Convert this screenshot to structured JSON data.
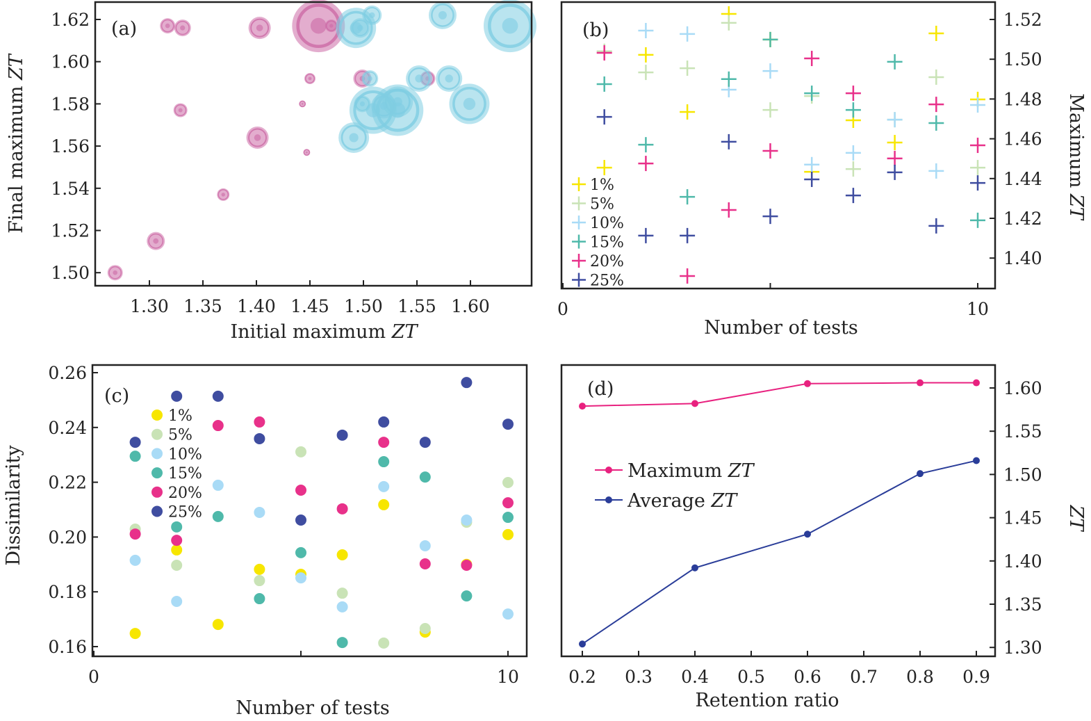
{
  "colors": {
    "pink_bubble": "#cc6aa6",
    "cyan_bubble": "#7fcde2",
    "p1": "#f7e600",
    "p5": "#c9e3b6",
    "p10": "#a9dbf6",
    "p15": "#4fb9aa",
    "p20": "#e8318a",
    "p25": "#3f4da0",
    "max_line": "#e8217f",
    "avg_line": "#2a3d99"
  },
  "chart_data": [
    {
      "type": "scatter",
      "panel_label": "(a)",
      "xlabel": "Initial maximum ",
      "xlabel_italic": "ZT",
      "ylabel": "Final maximum ",
      "ylabel_italic": "ZT",
      "xlim": [
        1.25,
        1.66
      ],
      "ylim": [
        1.492,
        1.628
      ],
      "xticks": [
        "1.30",
        "1.35",
        "1.40",
        "1.45",
        "1.50",
        "1.55",
        "1.60"
      ],
      "yticks": [
        "1.50",
        "1.52",
        "1.54",
        "1.56",
        "1.58",
        "1.60",
        "1.62"
      ],
      "series": [
        {
          "color": "pink",
          "points": [
            [
              1.268,
              1.5,
              11
            ],
            [
              1.306,
              1.515,
              13
            ],
            [
              1.317,
              1.617,
              11
            ],
            [
              1.331,
              1.616,
              12
            ],
            [
              1.329,
              1.577,
              10
            ],
            [
              1.369,
              1.537,
              9
            ],
            [
              1.401,
              1.564,
              16
            ],
            [
              1.403,
              1.616,
              16
            ],
            [
              1.443,
              1.58,
              5
            ],
            [
              1.447,
              1.557,
              5
            ],
            [
              1.45,
              1.592,
              8
            ],
            [
              1.458,
              1.617,
              38
            ],
            [
              1.47,
              1.617,
              9
            ],
            [
              1.499,
              1.592,
              13
            ],
            [
              1.56,
              1.592,
              11
            ]
          ]
        },
        {
          "color": "cyan",
          "points": [
            [
              1.493,
              1.616,
              29
            ],
            [
              1.497,
              1.616,
              14
            ],
            [
              1.508,
              1.622,
              14
            ],
            [
              1.574,
              1.622,
              20
            ],
            [
              1.637,
              1.617,
              38
            ],
            [
              1.506,
              1.592,
              12
            ],
            [
              1.552,
              1.592,
              19
            ],
            [
              1.58,
              1.592,
              19
            ],
            [
              1.499,
              1.58,
              12
            ],
            [
              1.509,
              1.577,
              34
            ],
            [
              1.532,
              1.577,
              37
            ],
            [
              1.532,
              1.581,
              22
            ],
            [
              1.599,
              1.58,
              29
            ],
            [
              1.491,
              1.564,
              22
            ],
            [
              1.519,
              1.579,
              18
            ]
          ]
        }
      ]
    },
    {
      "type": "scatter",
      "panel_label": "(b)",
      "xlabel": "Number of tests",
      "ylabel": "Maximum ",
      "ylabel_italic": "ZT",
      "xlim": [
        0,
        10.4
      ],
      "ylim": [
        1.385,
        1.528
      ],
      "xticks": [
        "0",
        "10"
      ],
      "yticks": [
        "1.40",
        "1.42",
        "1.44",
        "1.46",
        "1.48",
        "1.50",
        "1.52"
      ],
      "x": [
        1,
        2,
        3,
        4,
        5,
        6,
        7,
        8,
        9,
        10
      ],
      "series": [
        {
          "name": "1%",
          "color": "p1",
          "values": [
            1.4455,
            1.5022,
            1.4735,
            1.5228,
            1.5099,
            1.4434,
            1.4693,
            1.4581,
            1.513,
            1.4798
          ]
        },
        {
          "name": "5%",
          "color": "p5",
          "values": [
            1.504,
            1.4934,
            1.4955,
            1.5183,
            1.4745,
            1.4815,
            1.4448,
            1.4696,
            1.491,
            1.4455
          ]
        },
        {
          "name": "10%",
          "color": "p10",
          "values": [
            null,
            1.5144,
            1.5127,
            1.4847,
            1.4941,
            1.447,
            1.4529,
            1.4696,
            1.4438,
            1.477
          ]
        },
        {
          "name": "15%",
          "color": "p15",
          "values": [
            1.4875,
            1.457,
            1.4308,
            1.49,
            1.5099,
            1.4829,
            1.4745,
            1.4987,
            1.4679,
            1.419
          ]
        },
        {
          "name": "20%",
          "color": "p20",
          "values": [
            1.5032,
            1.4476,
            1.391,
            1.4242,
            1.4539,
            1.5004,
            1.4829,
            1.4501,
            1.4773,
            1.4567
          ]
        },
        {
          "name": "25%",
          "color": "p25",
          "values": [
            1.471,
            1.4113,
            1.4113,
            1.4585,
            1.421,
            1.4396,
            1.4315,
            1.4431,
            1.4162,
            1.4378
          ]
        }
      ]
    },
    {
      "type": "scatter",
      "panel_label": "(c)",
      "xlabel": "Number of tests",
      "ylabel": "Dissimilarity",
      "xlim": [
        0,
        10.45
      ],
      "ylim": [
        0.156,
        0.263
      ],
      "xticks": [
        "0",
        "10"
      ],
      "yticks": [
        "0.16",
        "0.18",
        "0.20",
        "0.22",
        "0.24",
        "0.26"
      ],
      "x": [
        1,
        2,
        3,
        4,
        5,
        6,
        7,
        8,
        9,
        10
      ],
      "series": [
        {
          "name": "1%",
          "color": "p1",
          "values": [
            0.1648,
            0.1953,
            0.1681,
            0.1882,
            0.1864,
            0.1935,
            0.2118,
            0.1653,
            0.19,
            0.2009
          ]
        },
        {
          "name": "5%",
          "color": "p5",
          "values": [
            0.2029,
            0.1897,
            null,
            0.1841,
            0.2311,
            0.1795,
            0.1613,
            0.1666,
            0.2054,
            0.2199
          ]
        },
        {
          "name": "10%",
          "color": "p10",
          "values": [
            0.1915,
            0.1765,
            0.2189,
            0.209,
            0.1851,
            0.1745,
            0.2184,
            0.1968,
            0.2062,
            0.1719
          ]
        },
        {
          "name": "15%",
          "color": "p15",
          "values": [
            0.2295,
            0.2037,
            0.2075,
            0.1775,
            0.1943,
            0.1615,
            0.2275,
            0.2219,
            0.1785,
            0.2072
          ]
        },
        {
          "name": "20%",
          "color": "p20",
          "values": [
            0.2011,
            0.1988,
            0.2407,
            0.242,
            0.2171,
            0.2103,
            0.2346,
            0.1902,
            0.1897,
            0.2125
          ]
        },
        {
          "name": "25%",
          "color": "p25",
          "values": [
            0.2346,
            0.2514,
            0.2514,
            0.2359,
            0.2062,
            0.2372,
            0.242,
            0.2346,
            0.2564,
            0.2412
          ]
        }
      ]
    },
    {
      "type": "line",
      "panel_label": "(d)",
      "xlabel": "Retention ratio",
      "ylabel_italic": "ZT",
      "xlim": [
        0.16,
        0.93
      ],
      "ylim": [
        1.29,
        1.62
      ],
      "xticks": [
        "0.2",
        "0.3",
        "0.4",
        "0.5",
        "0.6",
        "0.7",
        "0.8",
        "0.9"
      ],
      "yticks": [
        "1.30",
        "1.35",
        "1.40",
        "1.45",
        "1.50",
        "1.55",
        "1.60"
      ],
      "x": [
        0.2,
        0.4,
        0.6,
        0.8,
        0.9
      ],
      "series": [
        {
          "name": "Maximum ",
          "name_italic": "ZT",
          "color": "max_line",
          "values": [
            1.579,
            1.582,
            1.605,
            1.606,
            1.606
          ]
        },
        {
          "name": "Average ",
          "name_italic": "ZT",
          "color": "avg_line",
          "values": [
            1.304,
            1.392,
            1.431,
            1.501,
            1.516
          ]
        }
      ]
    }
  ]
}
